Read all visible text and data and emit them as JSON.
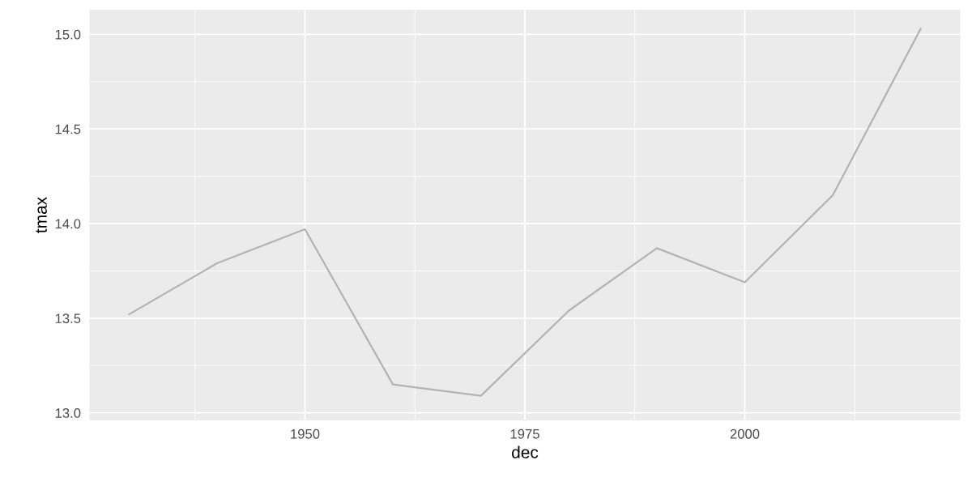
{
  "chart_data": {
    "type": "line",
    "xlabel": "dec",
    "ylabel": "tmax",
    "x": [
      1930,
      1940,
      1950,
      1960,
      1970,
      1980,
      1990,
      2000,
      2010,
      2020
    ],
    "series": [
      {
        "color": "#b3b3b3",
        "values": [
          13.52,
          13.79,
          13.97,
          13.15,
          13.09,
          13.54,
          13.87,
          13.69,
          14.15,
          15.03
        ]
      }
    ],
    "xlim": [
      1925.5,
      2024.5
    ],
    "xticks": [
      1950,
      1975,
      2000
    ],
    "ylim": [
      12.96,
      15.13
    ],
    "yticks": [
      {
        "value": 13,
        "label": "13.0"
      },
      13.5,
      {
        "value": 14,
        "label": "14.0"
      },
      14.5,
      {
        "value": 15,
        "label": "15.0"
      }
    ],
    "grid": true
  }
}
